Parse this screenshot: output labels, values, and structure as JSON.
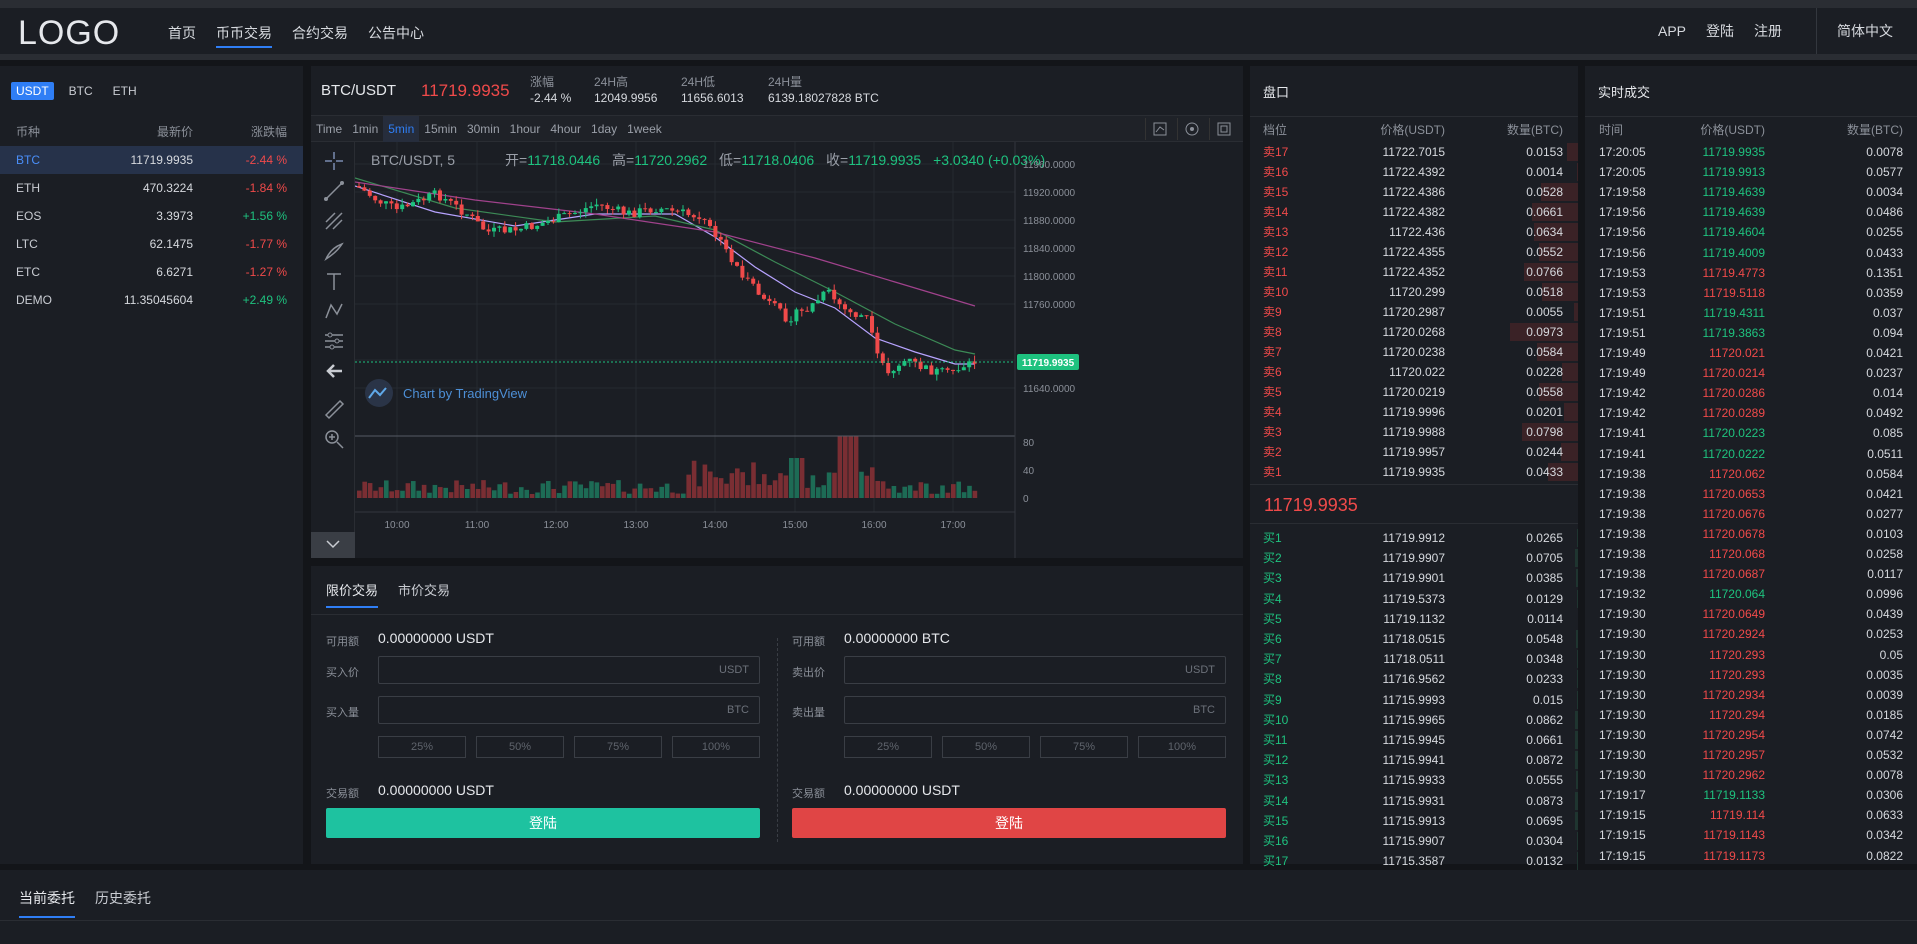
{
  "header": {
    "logo": "LOGO",
    "nav": [
      "首页",
      "币币交易",
      "合约交易",
      "公告中心"
    ],
    "right": [
      "APP",
      "登陆",
      "注册"
    ],
    "lang": "简体中文"
  },
  "market": {
    "tabs": [
      "USDT",
      "BTC",
      "ETH"
    ],
    "headers": [
      "币种",
      "最新价",
      "涨跌幅"
    ],
    "rows": [
      {
        "coin": "BTC",
        "price": "11719.9935",
        "change": "-2.44 %",
        "dir": "dn"
      },
      {
        "coin": "ETH",
        "price": "470.3224",
        "change": "-1.84 %",
        "dir": "dn"
      },
      {
        "coin": "EOS",
        "price": "3.3973",
        "change": "+1.56 %",
        "dir": "up"
      },
      {
        "coin": "LTC",
        "price": "62.1475",
        "change": "-1.77 %",
        "dir": "dn"
      },
      {
        "coin": "ETC",
        "price": "6.6271",
        "change": "-1.27 %",
        "dir": "dn"
      },
      {
        "coin": "DEMO",
        "price": "11.35045604",
        "change": "+2.49 %",
        "dir": "up"
      }
    ]
  },
  "ticker": {
    "pair": "BTC/USDT",
    "price": "11719.9935",
    "stats": [
      {
        "label": "涨幅",
        "value": "-2.44 %",
        "dir": "dn"
      },
      {
        "label": "24H高",
        "value": "12049.9956"
      },
      {
        "label": "24H低",
        "value": "11656.6013"
      },
      {
        "label": "24H量",
        "value": "6139.18027828 BTC"
      }
    ]
  },
  "chart": {
    "intervals": [
      "Time",
      "1min",
      "5min",
      "15min",
      "30min",
      "1hour",
      "4hour",
      "1day",
      "1week"
    ],
    "active_interval": "5min",
    "legend": {
      "symbol": "BTC/USDT, 5",
      "open_label": "开=",
      "open": "11718.0446",
      "high_label": "高=",
      "high": "11720.2962",
      "low_label": "低=",
      "low": "11718.0406",
      "close_label": "收=",
      "close": "11719.9935",
      "change": "+3.0340 (+0.03%)"
    },
    "watermark": "Chart by TradingView",
    "y_ticks": [
      "11960.0000",
      "11920.0000",
      "11880.0000",
      "11840.0000",
      "11800.0000",
      "11760.0000",
      "11680.0000",
      "11640.0000"
    ],
    "last_price_tag": "11719.9935",
    "vol_ticks": [
      "80",
      "40",
      "0"
    ],
    "x_ticks": [
      "10:00",
      "11:00",
      "12:00",
      "13:00",
      "14:00",
      "15:00",
      "16:00",
      "17:00"
    ]
  },
  "trade": {
    "tabs": [
      "限价交易",
      "市价交易"
    ],
    "buy": {
      "avail_label": "可用额",
      "avail": "0.00000000 USDT",
      "price_label": "买入价",
      "price_unit": "USDT",
      "amount_label": "买入量",
      "amount_unit": "BTC",
      "total_label": "交易额",
      "total": "0.00000000 USDT",
      "button": "登陆"
    },
    "sell": {
      "avail_label": "可用额",
      "avail": "0.00000000 BTC",
      "price_label": "卖出价",
      "price_unit": "USDT",
      "amount_label": "卖出量",
      "amount_unit": "BTC",
      "total_label": "交易额",
      "total": "0.00000000 USDT",
      "button": "登陆"
    },
    "pcts": [
      "25%",
      "50%",
      "75%",
      "100%"
    ]
  },
  "orderbook": {
    "title": "盘口",
    "headers": [
      "档位",
      "价格(USDT)",
      "数量(BTC)"
    ],
    "asks": [
      [
        "卖17",
        "11722.7015",
        "0.0153"
      ],
      [
        "卖16",
        "11722.4392",
        "0.0014"
      ],
      [
        "卖15",
        "11722.4386",
        "0.0528"
      ],
      [
        "卖14",
        "11722.4382",
        "0.0661"
      ],
      [
        "卖13",
        "11722.436",
        "0.0634"
      ],
      [
        "卖12",
        "11722.4355",
        "0.0552"
      ],
      [
        "卖11",
        "11722.4352",
        "0.0766"
      ],
      [
        "卖10",
        "11720.299",
        "0.0518"
      ],
      [
        "卖9",
        "11720.2987",
        "0.0055"
      ],
      [
        "卖8",
        "11720.0268",
        "0.0973"
      ],
      [
        "卖7",
        "11720.0238",
        "0.0584"
      ],
      [
        "卖6",
        "11720.022",
        "0.0228"
      ],
      [
        "卖5",
        "11720.0219",
        "0.0558"
      ],
      [
        "卖4",
        "11719.9996",
        "0.0201"
      ],
      [
        "卖3",
        "11719.9988",
        "0.0798"
      ],
      [
        "卖2",
        "11719.9957",
        "0.0244"
      ],
      [
        "卖1",
        "11719.9935",
        "0.0433"
      ]
    ],
    "mid": "11719.9935",
    "bids": [
      [
        "买1",
        "11719.9912",
        "0.0265"
      ],
      [
        "买2",
        "11719.9907",
        "0.0705"
      ],
      [
        "买3",
        "11719.9901",
        "0.0385"
      ],
      [
        "买4",
        "11719.5373",
        "0.0129"
      ],
      [
        "买5",
        "11719.1132",
        "0.0114"
      ],
      [
        "买6",
        "11718.0515",
        "0.0548"
      ],
      [
        "买7",
        "11718.0511",
        "0.0348"
      ],
      [
        "买8",
        "11716.9562",
        "0.0233"
      ],
      [
        "买9",
        "11715.9993",
        "0.015"
      ],
      [
        "买10",
        "11715.9965",
        "0.0862"
      ],
      [
        "买11",
        "11715.9945",
        "0.0661"
      ],
      [
        "买12",
        "11715.9941",
        "0.0872"
      ],
      [
        "买13",
        "11715.9933",
        "0.0555"
      ],
      [
        "买14",
        "11715.9931",
        "0.0873"
      ],
      [
        "买15",
        "11715.9913",
        "0.0695"
      ],
      [
        "买16",
        "11715.9907",
        "0.0304"
      ],
      [
        "买17",
        "11715.3587",
        "0.0132"
      ]
    ]
  },
  "trades": {
    "title": "实时成交",
    "headers": [
      "时间",
      "价格(USDT)",
      "数量(BTC)"
    ],
    "rows": [
      [
        "17:20:05",
        "11719.9935",
        "0.0078",
        "up"
      ],
      [
        "17:20:05",
        "11719.9913",
        "0.0577",
        "up"
      ],
      [
        "17:19:58",
        "11719.4639",
        "0.0034",
        "up"
      ],
      [
        "17:19:56",
        "11719.4639",
        "0.0486",
        "up"
      ],
      [
        "17:19:56",
        "11719.4604",
        "0.0255",
        "up"
      ],
      [
        "17:19:56",
        "11719.4009",
        "0.0433",
        "up"
      ],
      [
        "17:19:53",
        "11719.4773",
        "0.1351",
        "dn"
      ],
      [
        "17:19:53",
        "11719.5118",
        "0.0359",
        "dn"
      ],
      [
        "17:19:51",
        "11719.4311",
        "0.037",
        "up"
      ],
      [
        "17:19:51",
        "11719.3863",
        "0.094",
        "up"
      ],
      [
        "17:19:49",
        "11720.021",
        "0.0421",
        "dn"
      ],
      [
        "17:19:49",
        "11720.0214",
        "0.0237",
        "dn"
      ],
      [
        "17:19:42",
        "11720.0286",
        "0.014",
        "dn"
      ],
      [
        "17:19:42",
        "11720.0289",
        "0.0492",
        "dn"
      ],
      [
        "17:19:41",
        "11720.0223",
        "0.085",
        "up"
      ],
      [
        "17:19:41",
        "11720.0222",
        "0.0511",
        "up"
      ],
      [
        "17:19:38",
        "11720.062",
        "0.0584",
        "dn"
      ],
      [
        "17:19:38",
        "11720.0653",
        "0.0421",
        "dn"
      ],
      [
        "17:19:38",
        "11720.0676",
        "0.0277",
        "dn"
      ],
      [
        "17:19:38",
        "11720.0678",
        "0.0103",
        "dn"
      ],
      [
        "17:19:38",
        "11720.068",
        "0.0258",
        "dn"
      ],
      [
        "17:19:38",
        "11720.0687",
        "0.0117",
        "dn"
      ],
      [
        "17:19:32",
        "11720.064",
        "0.0996",
        "up"
      ],
      [
        "17:19:30",
        "11720.0649",
        "0.0439",
        "dn"
      ],
      [
        "17:19:30",
        "11720.2924",
        "0.0253",
        "dn"
      ],
      [
        "17:19:30",
        "11720.293",
        "0.05",
        "dn"
      ],
      [
        "17:19:30",
        "11720.293",
        "0.0035",
        "dn"
      ],
      [
        "17:19:30",
        "11720.2934",
        "0.0039",
        "dn"
      ],
      [
        "17:19:30",
        "11720.294",
        "0.0185",
        "dn"
      ],
      [
        "17:19:30",
        "11720.2954",
        "0.0742",
        "dn"
      ],
      [
        "17:19:30",
        "11720.2957",
        "0.0532",
        "dn"
      ],
      [
        "17:19:30",
        "11720.2962",
        "0.0078",
        "dn"
      ],
      [
        "17:19:17",
        "11719.1133",
        "0.0306",
        "up"
      ],
      [
        "17:19:15",
        "11719.114",
        "0.0633",
        "dn"
      ],
      [
        "17:19:15",
        "11719.1143",
        "0.0342",
        "dn"
      ],
      [
        "17:19:15",
        "11719.1173",
        "0.0822",
        "dn"
      ]
    ]
  },
  "bottom": {
    "tabs": [
      "当前委托",
      "历史委托"
    ]
  },
  "colors": {
    "up": "#1ec27f",
    "down": "#f04a4a",
    "accent": "#2f7ef5"
  }
}
